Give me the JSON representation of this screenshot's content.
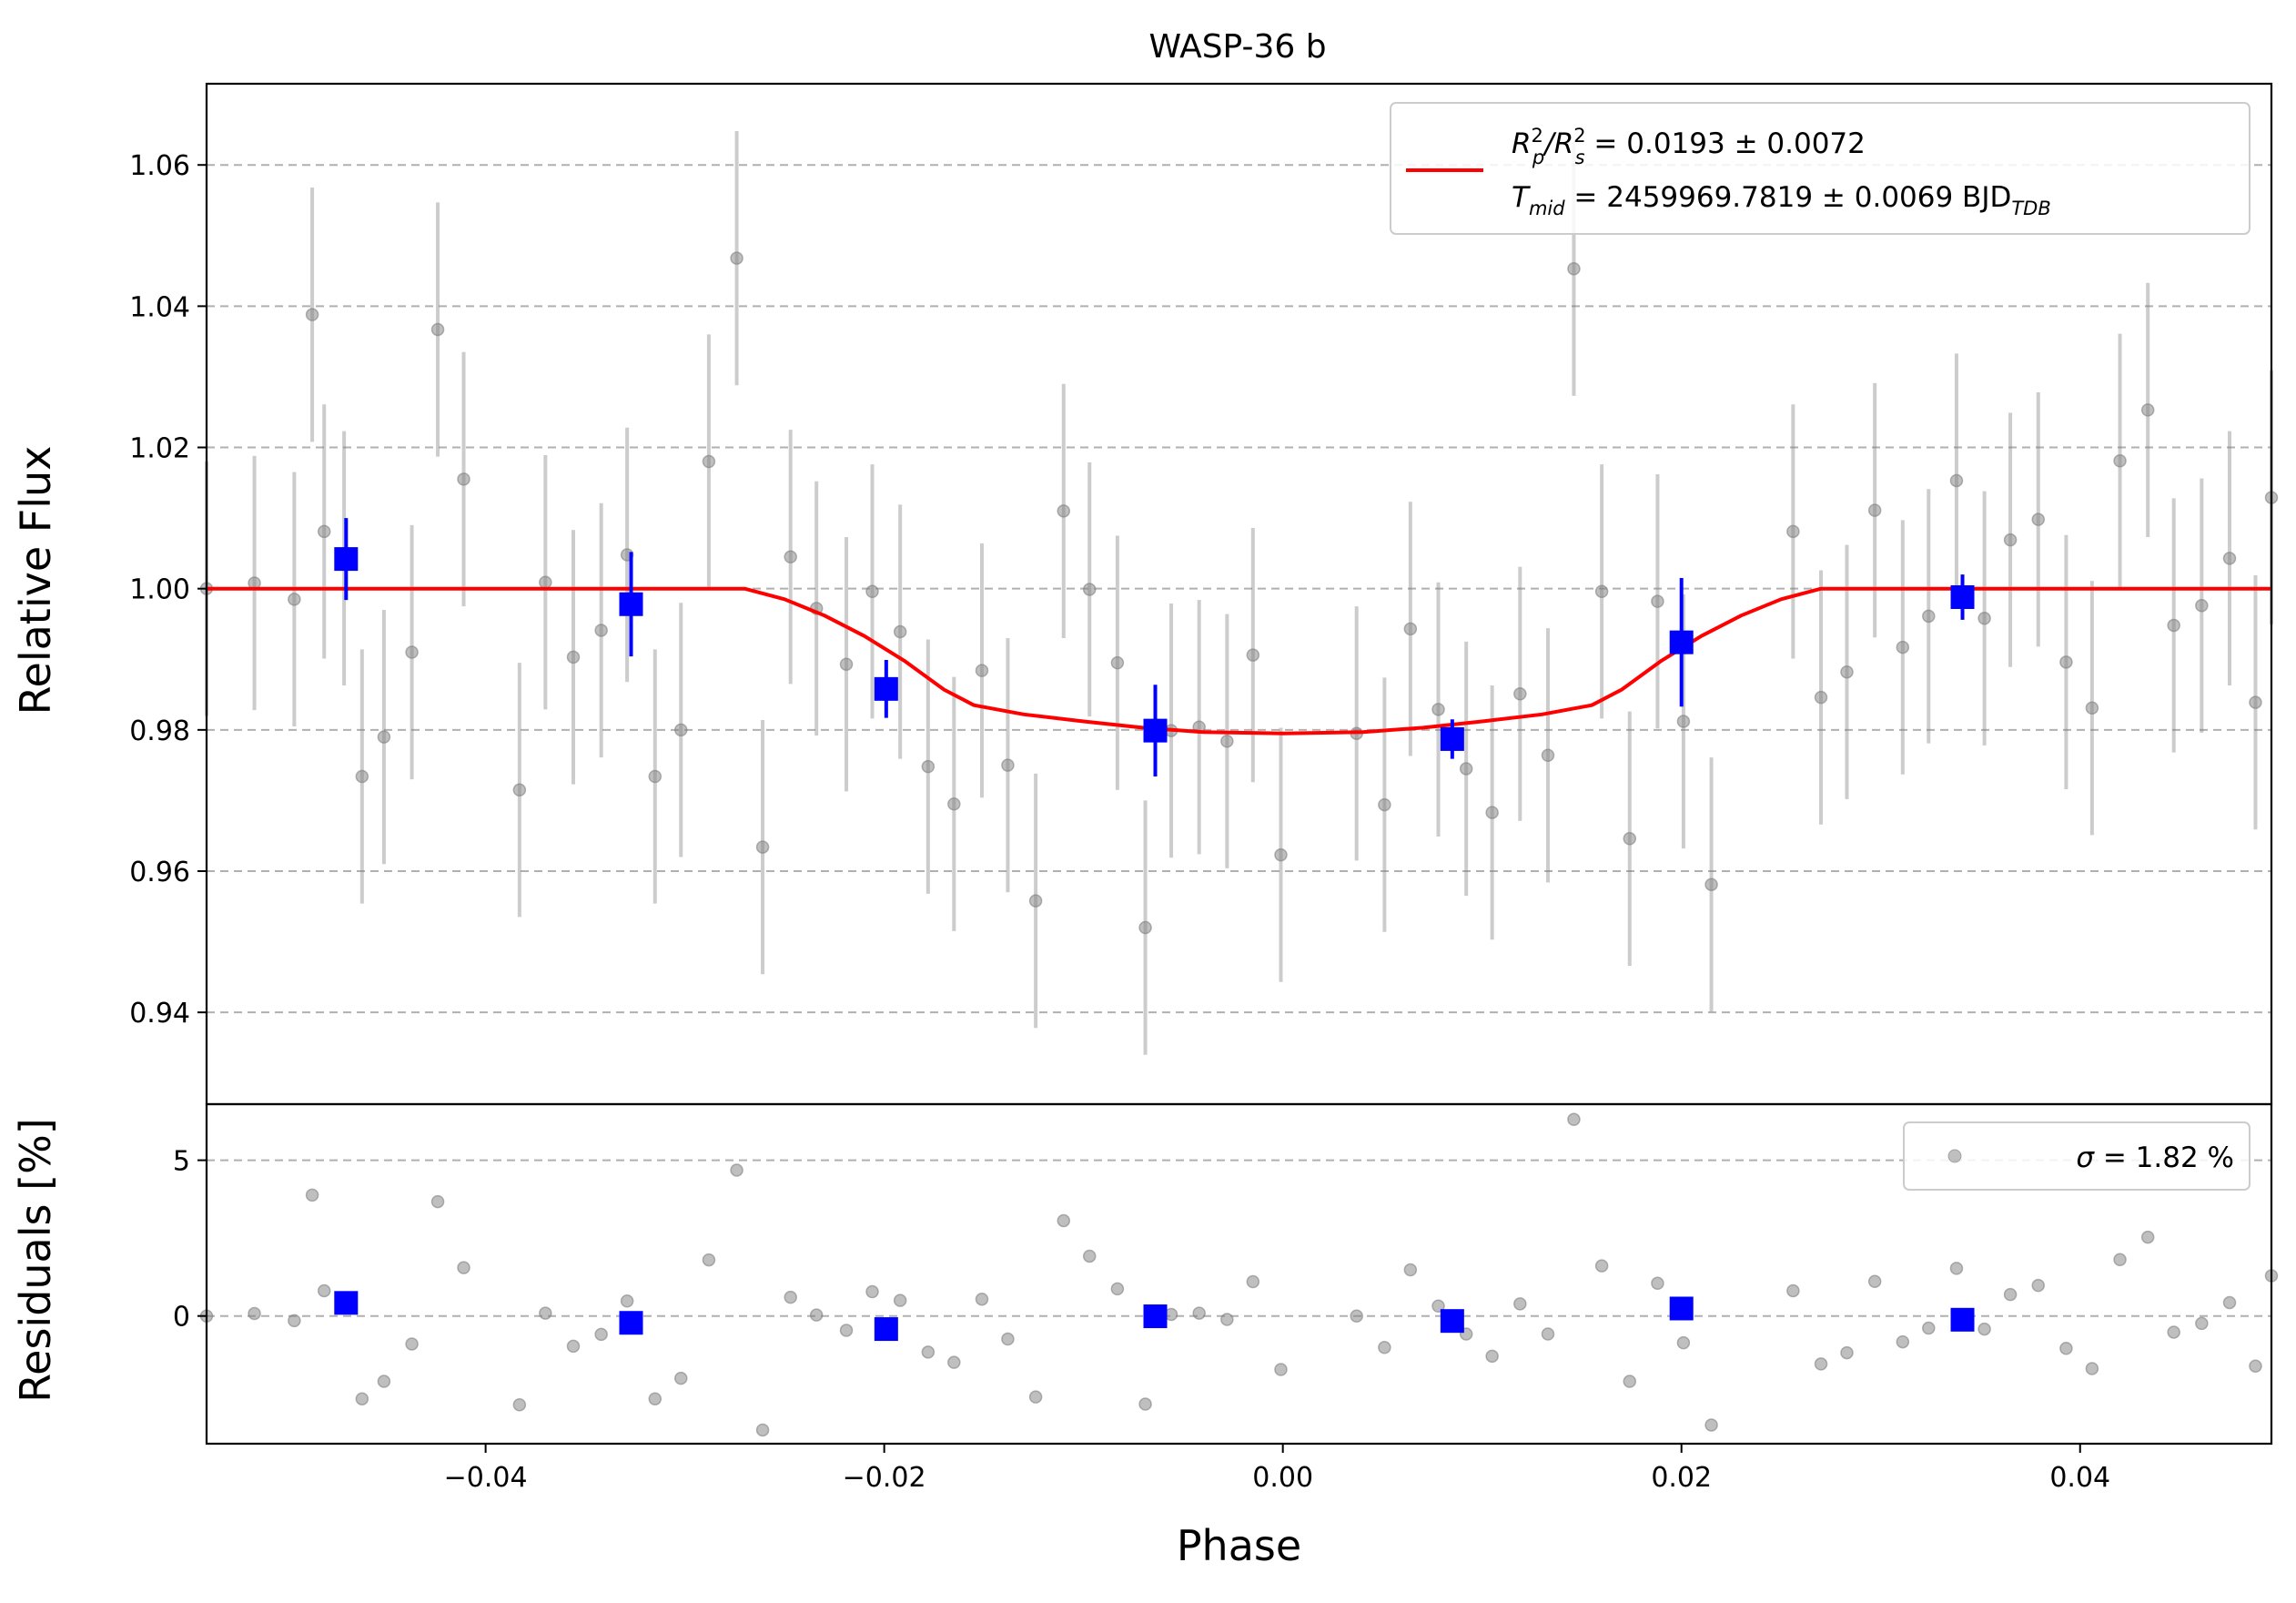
{
  "chart_data": {
    "type": "scatter",
    "title": "WASP-36 b",
    "xlabel": "Phase",
    "xlim": [
      -0.054,
      0.0496
    ],
    "xticks": [
      {
        "value": -0.04,
        "label": "−0.04"
      },
      {
        "value": -0.02,
        "label": "−0.02"
      },
      {
        "value": 0.0,
        "label": "0.00"
      },
      {
        "value": 0.02,
        "label": "0.02"
      },
      {
        "value": 0.04,
        "label": "0.04"
      }
    ],
    "grid": true,
    "top_panel": {
      "ylabel": "Relative Flux",
      "ylim": [
        0.927,
        1.0715
      ],
      "yticks": [
        {
          "value": 0.94,
          "label": "0.94"
        },
        {
          "value": 0.96,
          "label": "0.96"
        },
        {
          "value": 0.98,
          "label": "0.98"
        },
        {
          "value": 1.0,
          "label": "1.00"
        },
        {
          "value": 1.02,
          "label": "1.02"
        },
        {
          "value": 1.04,
          "label": "1.04"
        },
        {
          "value": 1.06,
          "label": "1.06"
        }
      ],
      "legend": {
        "position": "top-right",
        "line1": {
          "main": "R",
          "sup1": "2",
          "sub1": "p",
          "slash": "/R",
          "sup2": "2",
          "sub2": "s",
          "value": " = 0.0193 ± 0.0072"
        },
        "line2": {
          "main": "T",
          "sub": "mid",
          "value": " = 2459969.7819 ± 0.0069 BJD",
          "sub2": "TDB"
        }
      },
      "model": {
        "color": "#ff0000",
        "x": [
          -0.054,
          -0.027,
          -0.025,
          -0.023,
          -0.021,
          -0.019,
          -0.017,
          -0.0155,
          -0.013,
          -0.01,
          -0.007,
          -0.004,
          0.0,
          0.004,
          0.007,
          0.01,
          0.013,
          0.0155,
          0.017,
          0.019,
          0.021,
          0.023,
          0.025,
          0.027,
          0.0496
        ],
        "y": [
          1.0,
          1.0,
          0.9985,
          0.9962,
          0.9933,
          0.9898,
          0.9857,
          0.9835,
          0.9822,
          0.9812,
          0.9803,
          0.9797,
          0.9795,
          0.9797,
          0.9803,
          0.9812,
          0.9822,
          0.9835,
          0.9857,
          0.9898,
          0.9933,
          0.9962,
          0.9985,
          1.0,
          1.0
        ]
      },
      "raw": {
        "color": "#808080",
        "x": [
          -0.054,
          -0.0516,
          -0.0496,
          -0.0487,
          -0.0481,
          -0.0471,
          -0.0462,
          -0.0451,
          -0.0437,
          -0.0424,
          -0.0411,
          -0.0383,
          -0.037,
          -0.0356,
          -0.0342,
          -0.0329,
          -0.0315,
          -0.0302,
          -0.0288,
          -0.0274,
          -0.0261,
          -0.0247,
          -0.0234,
          -0.0219,
          -0.0206,
          -0.0192,
          -0.0178,
          -0.0165,
          -0.0151,
          -0.0138,
          -0.0124,
          -0.011,
          -0.0097,
          -0.0083,
          -0.0069,
          -0.0056,
          -0.0042,
          -0.0028,
          -0.0015,
          -0.0001,
          0.0037,
          0.0051,
          0.0064,
          0.0078,
          0.0092,
          0.0105,
          0.0119,
          0.0133,
          0.0146,
          0.016,
          0.0174,
          0.0188,
          0.0201,
          0.0215,
          0.0256,
          0.027,
          0.0283,
          0.0297,
          0.0311,
          0.0324,
          0.0338,
          0.0352,
          0.0365,
          0.0379,
          0.0393,
          0.0406,
          0.042,
          0.0434,
          0.0447,
          0.0461,
          0.0475,
          0.0488,
          0.0496
        ],
        "y": [
          1.0,
          1.0008,
          0.9985,
          1.0388,
          1.0081,
          1.0043,
          0.9734,
          0.979,
          0.991,
          1.0367,
          1.0155,
          0.9715,
          1.0009,
          0.9903,
          0.9941,
          1.0048,
          0.9734,
          0.98,
          1.018,
          1.0468,
          0.9634,
          1.0045,
          0.9972,
          0.9893,
          0.9996,
          0.9939,
          0.9748,
          0.9695,
          0.9884,
          0.975,
          0.9558,
          1.011,
          0.9999,
          0.9895,
          0.952,
          0.9799,
          0.9804,
          0.9784,
          0.9906,
          0.9623,
          0.9795,
          0.9694,
          0.9943,
          0.9829,
          0.9745,
          0.9683,
          0.9851,
          0.9764,
          1.0453,
          0.9996,
          0.9646,
          0.9982,
          0.9812,
          0.9581,
          1.0081,
          0.9846,
          0.9882,
          1.0111,
          0.9917,
          0.9961,
          1.0153,
          0.9958,
          1.0069,
          1.0098,
          0.9896,
          0.9831,
          1.0181,
          1.0253,
          0.9948,
          0.9976,
          1.0043,
          0.9839,
          1.0129
        ],
        "err": [
          0.018,
          0.018,
          0.018,
          0.018,
          0.018,
          0.018,
          0.018,
          0.018,
          0.018,
          0.018,
          0.018,
          0.018,
          0.018,
          0.018,
          0.018,
          0.018,
          0.018,
          0.018,
          0.018,
          0.018,
          0.018,
          0.018,
          0.018,
          0.018,
          0.018,
          0.018,
          0.018,
          0.018,
          0.018,
          0.018,
          0.018,
          0.018,
          0.018,
          0.018,
          0.018,
          0.018,
          0.018,
          0.018,
          0.018,
          0.018,
          0.018,
          0.018,
          0.018,
          0.018,
          0.018,
          0.018,
          0.018,
          0.018,
          0.018,
          0.018,
          0.018,
          0.018,
          0.018,
          0.018,
          0.018,
          0.018,
          0.018,
          0.018,
          0.018,
          0.018,
          0.018,
          0.018,
          0.018,
          0.018,
          0.018,
          0.018,
          0.018,
          0.018,
          0.018,
          0.018,
          0.018,
          0.018,
          0.018
        ]
      },
      "binned": {
        "color": "#0000ff",
        "x": [
          -0.047,
          -0.0327,
          -0.0199,
          -0.0064,
          0.0085,
          0.02,
          0.0341
        ],
        "y": [
          1.0042,
          0.9978,
          0.9858,
          0.9799,
          0.9787,
          0.9924,
          0.9988
        ],
        "err": [
          0.0058,
          0.0074,
          0.0041,
          0.0065,
          0.0028,
          0.0091,
          0.0032
        ]
      }
    },
    "bottom_panel": {
      "ylabel": "Residuals [%]",
      "ylim": [
        -4.1,
        6.8
      ],
      "yticks": [
        {
          "value": 0,
          "label": "0"
        },
        {
          "value": 5,
          "label": "5"
        }
      ],
      "legend": {
        "position": "top-right",
        "sigma": "σ",
        "value": " = 1.82 %"
      },
      "raw_residuals": [
        0.0,
        0.08,
        -0.15,
        3.88,
        0.81,
        0.43,
        -2.66,
        -2.1,
        -0.9,
        3.67,
        1.55,
        -2.85,
        0.09,
        -0.97,
        -0.59,
        0.48,
        -2.66,
        -2.0,
        1.8,
        4.68,
        -3.66,
        0.6,
        0.03,
        -0.46,
        0.78,
        0.5,
        -1.16,
        -1.49,
        0.54,
        -0.74,
        -2.6,
        3.06,
        1.92,
        0.87,
        -2.83,
        0.05,
        0.09,
        -0.11,
        1.1,
        -1.72,
        0.0,
        -1.01,
        1.48,
        0.32,
        -0.58,
        -1.29,
        0.39,
        -0.58,
        6.31,
        1.61,
        -2.1,
        1.05,
        -0.86,
        -3.5,
        0.81,
        -1.54,
        -1.18,
        1.11,
        -0.83,
        -0.39,
        1.53,
        -0.42,
        0.69,
        0.98,
        -1.04,
        -1.69,
        1.81,
        2.53,
        -0.52,
        -0.24,
        0.43,
        -1.61,
        1.29
      ],
      "binned_residuals": [
        0.42,
        -0.22,
        -0.42,
        -0.01,
        -0.16,
        0.24,
        -0.12
      ]
    }
  }
}
